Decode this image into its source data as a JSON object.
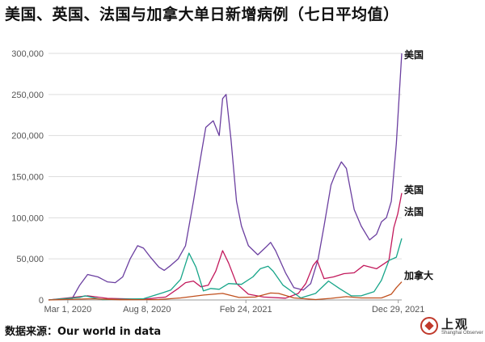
{
  "title": "美国、英国、法国与加拿大单日新增病例（七日平均值）",
  "source": "数据来源：Our world in data",
  "logo": {
    "text": "上观",
    "subtext": "Shanghai Observer"
  },
  "chart_data": {
    "type": "line",
    "ylim": [
      0,
      300000
    ],
    "yticks": [
      0,
      50000,
      100000,
      150000,
      200000,
      250000,
      300000
    ],
    "ytick_labels": [
      "0",
      "50,000",
      "100,000",
      "150,000",
      "200,000",
      "250,000",
      "300,000"
    ],
    "xlim": [
      "2020-01-22",
      "2022-01-05"
    ],
    "xticks": [
      "2020-03-01",
      "2020-08-08",
      "2021-02-24",
      "2021-12-29"
    ],
    "xtick_labels": [
      "Mar 1, 2020",
      "Aug 8, 2020",
      "Feb 24, 2021",
      "Dec 29, 2021"
    ],
    "grid": true,
    "series": [
      {
        "name": "美国",
        "color": "#6b3fa0",
        "x": [
          "2020-01-22",
          "2020-03-10",
          "2020-03-25",
          "2020-04-10",
          "2020-05-01",
          "2020-05-20",
          "2020-06-05",
          "2020-06-20",
          "2020-07-05",
          "2020-07-20",
          "2020-08-01",
          "2020-08-15",
          "2020-09-01",
          "2020-09-12",
          "2020-09-25",
          "2020-10-10",
          "2020-10-25",
          "2020-11-10",
          "2020-11-25",
          "2020-12-05",
          "2020-12-20",
          "2021-01-01",
          "2021-01-08",
          "2021-01-15",
          "2021-01-25",
          "2021-02-05",
          "2021-02-15",
          "2021-03-01",
          "2021-03-20",
          "2021-04-05",
          "2021-04-15",
          "2021-04-25",
          "2021-05-15",
          "2021-06-01",
          "2021-06-20",
          "2021-07-05",
          "2021-07-20",
          "2021-08-01",
          "2021-08-15",
          "2021-08-25",
          "2021-09-05",
          "2021-09-15",
          "2021-10-01",
          "2021-10-15",
          "2021-11-01",
          "2021-11-15",
          "2021-11-25",
          "2021-12-05",
          "2021-12-15",
          "2021-12-25",
          "2022-01-05"
        ],
        "values": [
          0,
          2000,
          18000,
          31000,
          28000,
          22000,
          21000,
          28000,
          50000,
          66000,
          63000,
          52000,
          40000,
          36000,
          42000,
          50000,
          66000,
          120000,
          175000,
          210000,
          218000,
          200000,
          245000,
          250000,
          195000,
          120000,
          90000,
          66000,
          55000,
          64000,
          70000,
          60000,
          33000,
          15000,
          12000,
          20000,
          50000,
          90000,
          140000,
          155000,
          168000,
          160000,
          110000,
          90000,
          73000,
          80000,
          95000,
          100000,
          120000,
          190000,
          300000
        ]
      },
      {
        "name": "英国",
        "color": "#c2185b",
        "x": [
          "2020-01-22",
          "2020-04-10",
          "2020-05-20",
          "2020-08-01",
          "2020-09-15",
          "2020-10-10",
          "2020-10-25",
          "2020-11-10",
          "2020-11-25",
          "2020-12-10",
          "2020-12-25",
          "2021-01-08",
          "2021-01-20",
          "2021-02-05",
          "2021-03-01",
          "2021-04-01",
          "2021-05-15",
          "2021-06-10",
          "2021-06-25",
          "2021-07-10",
          "2021-07-18",
          "2021-08-01",
          "2021-08-20",
          "2021-09-10",
          "2021-10-01",
          "2021-10-20",
          "2021-11-15",
          "2021-12-10",
          "2021-12-20",
          "2021-12-28",
          "2022-01-05"
        ],
        "values": [
          0,
          5000,
          2000,
          800,
          3500,
          14000,
          21000,
          23000,
          16000,
          18000,
          35000,
          60000,
          45000,
          20000,
          7000,
          3500,
          2200,
          8000,
          20000,
          42000,
          48000,
          26000,
          28000,
          32000,
          33000,
          42000,
          38000,
          48000,
          88000,
          105000,
          130000
        ]
      },
      {
        "name": "法国",
        "color": "#17a589",
        "x": [
          "2020-01-22",
          "2020-03-25",
          "2020-04-05",
          "2020-05-10",
          "2020-08-01",
          "2020-09-10",
          "2020-09-25",
          "2020-10-15",
          "2020-11-01",
          "2020-11-15",
          "2020-11-30",
          "2020-12-15",
          "2021-01-01",
          "2021-01-20",
          "2021-02-15",
          "2021-03-10",
          "2021-03-25",
          "2021-04-10",
          "2021-04-20",
          "2021-05-10",
          "2021-06-15",
          "2021-07-15",
          "2021-08-10",
          "2021-09-01",
          "2021-09-25",
          "2021-10-15",
          "2021-11-10",
          "2021-11-25",
          "2021-12-10",
          "2021-12-25",
          "2022-01-05"
        ],
        "values": [
          0,
          3000,
          5000,
          400,
          1500,
          9000,
          12000,
          25000,
          57000,
          40000,
          11000,
          14000,
          13000,
          20000,
          19000,
          28000,
          38000,
          41000,
          35000,
          18000,
          2500,
          8000,
          23000,
          14000,
          5000,
          5000,
          10000,
          24000,
          48000,
          52000,
          75000
        ]
      },
      {
        "name": "加拿大",
        "color": "#c0501e",
        "x": [
          "2020-01-22",
          "2020-04-20",
          "2020-06-15",
          "2020-09-01",
          "2020-10-15",
          "2020-12-01",
          "2021-01-08",
          "2021-02-10",
          "2021-03-15",
          "2021-04-15",
          "2021-05-01",
          "2021-06-01",
          "2021-07-15",
          "2021-08-15",
          "2021-09-15",
          "2021-10-15",
          "2021-11-25",
          "2021-12-15",
          "2021-12-25",
          "2022-01-05"
        ],
        "values": [
          0,
          1500,
          300,
          500,
          2500,
          6000,
          8000,
          3000,
          3500,
          8500,
          8000,
          2500,
          500,
          2000,
          4000,
          2500,
          2500,
          7000,
          15000,
          22000
        ]
      }
    ]
  }
}
